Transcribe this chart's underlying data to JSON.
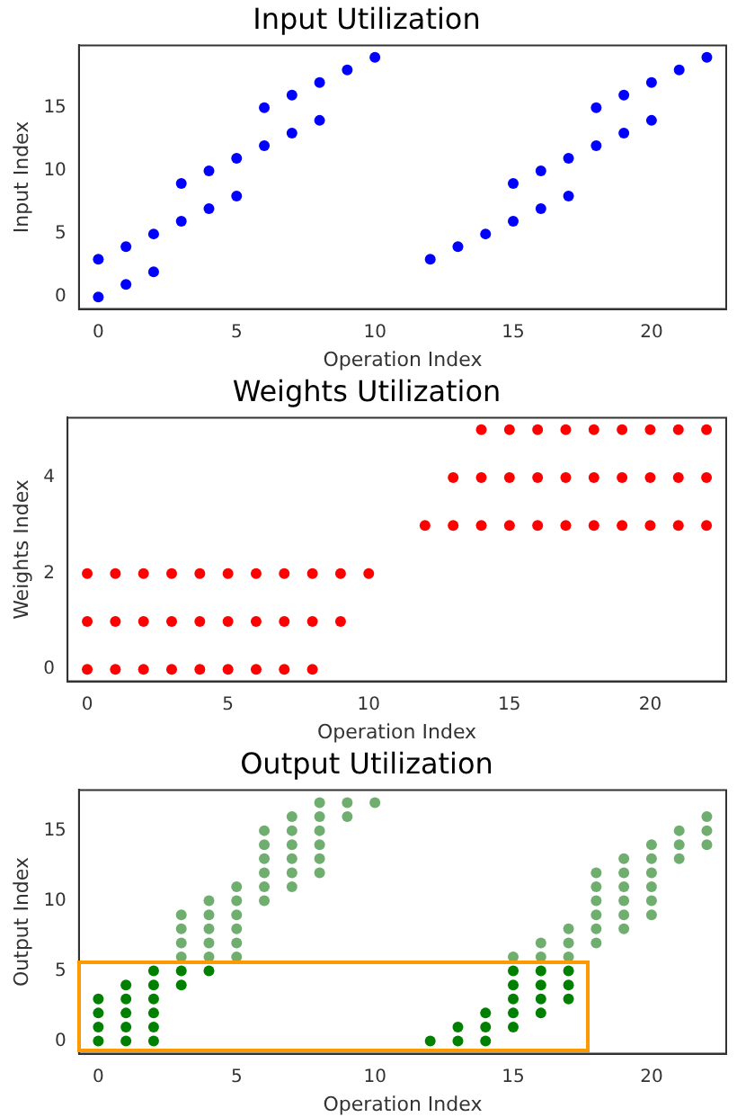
{
  "chart_data": [
    {
      "type": "scatter",
      "title": "Input Utilization",
      "xlabel": "Operation Index",
      "ylabel": "Input Index",
      "marker": "circle",
      "xlim": [
        -0.7,
        22.7
      ],
      "xticks": [
        0,
        5,
        10,
        15,
        20
      ],
      "ylim": [
        -0.95,
        19.95
      ],
      "yticks": [
        0,
        5,
        10,
        15
      ],
      "series": [
        {
          "color": "#0000ff",
          "x": [
            0,
            0,
            1,
            1,
            2,
            2,
            3,
            3,
            4,
            4,
            5,
            5,
            6,
            6,
            7,
            7,
            8,
            8,
            9,
            10,
            12,
            13,
            14,
            15,
            15,
            16,
            16,
            17,
            17,
            18,
            18,
            19,
            19,
            20,
            20,
            21,
            22
          ],
          "values": [
            0,
            3,
            1,
            4,
            2,
            5,
            6,
            9,
            7,
            10,
            8,
            11,
            12,
            15,
            13,
            16,
            14,
            17,
            18,
            19,
            3,
            4,
            5,
            6,
            9,
            7,
            10,
            8,
            11,
            12,
            15,
            13,
            16,
            14,
            17,
            18,
            19
          ]
        }
      ]
    },
    {
      "type": "scatter",
      "title": "Weights Utilization",
      "xlabel": "Operation Index",
      "ylabel": "Weights Index",
      "marker": "circle",
      "xlim": [
        -0.7,
        22.7
      ],
      "xticks": [
        0,
        5,
        10,
        15,
        20
      ],
      "ylim": [
        -0.25,
        5.25
      ],
      "yticks": [
        0,
        2,
        4
      ],
      "series": [
        {
          "color": "#ff0000",
          "x": [
            0,
            1,
            2,
            3,
            4,
            5,
            6,
            7,
            8,
            0,
            1,
            2,
            3,
            4,
            5,
            6,
            7,
            8,
            9,
            0,
            1,
            2,
            3,
            4,
            5,
            6,
            7,
            8,
            9,
            10,
            12,
            13,
            14,
            15,
            16,
            17,
            18,
            19,
            20,
            21,
            22,
            13,
            14,
            15,
            16,
            17,
            18,
            19,
            20,
            21,
            22,
            14,
            15,
            16,
            17,
            18,
            19,
            20,
            21,
            22
          ],
          "values": [
            0,
            0,
            0,
            0,
            0,
            0,
            0,
            0,
            0,
            1,
            1,
            1,
            1,
            1,
            1,
            1,
            1,
            1,
            1,
            2,
            2,
            2,
            2,
            2,
            2,
            2,
            2,
            2,
            2,
            2,
            3,
            3,
            3,
            3,
            3,
            3,
            3,
            3,
            3,
            3,
            3,
            4,
            4,
            4,
            4,
            4,
            4,
            4,
            4,
            4,
            4,
            5,
            5,
            5,
            5,
            5,
            5,
            5,
            5,
            5
          ]
        }
      ]
    },
    {
      "type": "scatter",
      "title": "Output Utilization",
      "xlabel": "Operation Index",
      "ylabel": "Output Index",
      "marker": "circle",
      "xlim": [
        -0.7,
        22.7
      ],
      "xticks": [
        0,
        5,
        10,
        15,
        20
      ],
      "ylim": [
        -0.9,
        17.9
      ],
      "yticks": [
        0,
        5,
        10,
        15
      ],
      "series": [
        {
          "color": "#6fae6f",
          "x": [
            3,
            3,
            3,
            3,
            4,
            4,
            4,
            4,
            4,
            5,
            5,
            5,
            5,
            5,
            5,
            6,
            6,
            6,
            6,
            6,
            6,
            7,
            7,
            7,
            7,
            7,
            7,
            8,
            8,
            8,
            8,
            8,
            8,
            9,
            9,
            10,
            15,
            16,
            16,
            17,
            17,
            17,
            18,
            18,
            18,
            18,
            18,
            18,
            19,
            19,
            19,
            19,
            19,
            19,
            20,
            20,
            20,
            20,
            20,
            20,
            21,
            21,
            21,
            22,
            22,
            22
          ],
          "values": [
            6,
            7,
            8,
            9,
            6,
            7,
            8,
            9,
            10,
            6,
            7,
            8,
            9,
            10,
            11,
            10,
            11,
            12,
            13,
            14,
            15,
            11,
            12,
            13,
            14,
            15,
            16,
            12,
            13,
            14,
            15,
            16,
            17,
            16,
            17,
            17,
            6,
            6,
            7,
            6,
            7,
            8,
            7,
            8,
            9,
            10,
            11,
            12,
            8,
            9,
            10,
            11,
            12,
            13,
            9,
            10,
            11,
            12,
            13,
            14,
            13,
            14,
            15,
            14,
            15,
            16
          ]
        },
        {
          "color": "#008000",
          "x": [
            0,
            0,
            0,
            0,
            1,
            1,
            1,
            1,
            1,
            2,
            2,
            2,
            2,
            2,
            2,
            3,
            3,
            4,
            12,
            13,
            13,
            14,
            14,
            14,
            15,
            15,
            15,
            15,
            15,
            16,
            16,
            16,
            16,
            17,
            17,
            17
          ],
          "values": [
            0,
            1,
            2,
            3,
            0,
            1,
            2,
            3,
            4,
            0,
            1,
            2,
            3,
            4,
            5,
            4,
            5,
            5,
            0,
            0,
            1,
            0,
            1,
            2,
            1,
            2,
            3,
            4,
            5,
            2,
            3,
            4,
            5,
            3,
            4,
            5
          ]
        }
      ]
    }
  ]
}
